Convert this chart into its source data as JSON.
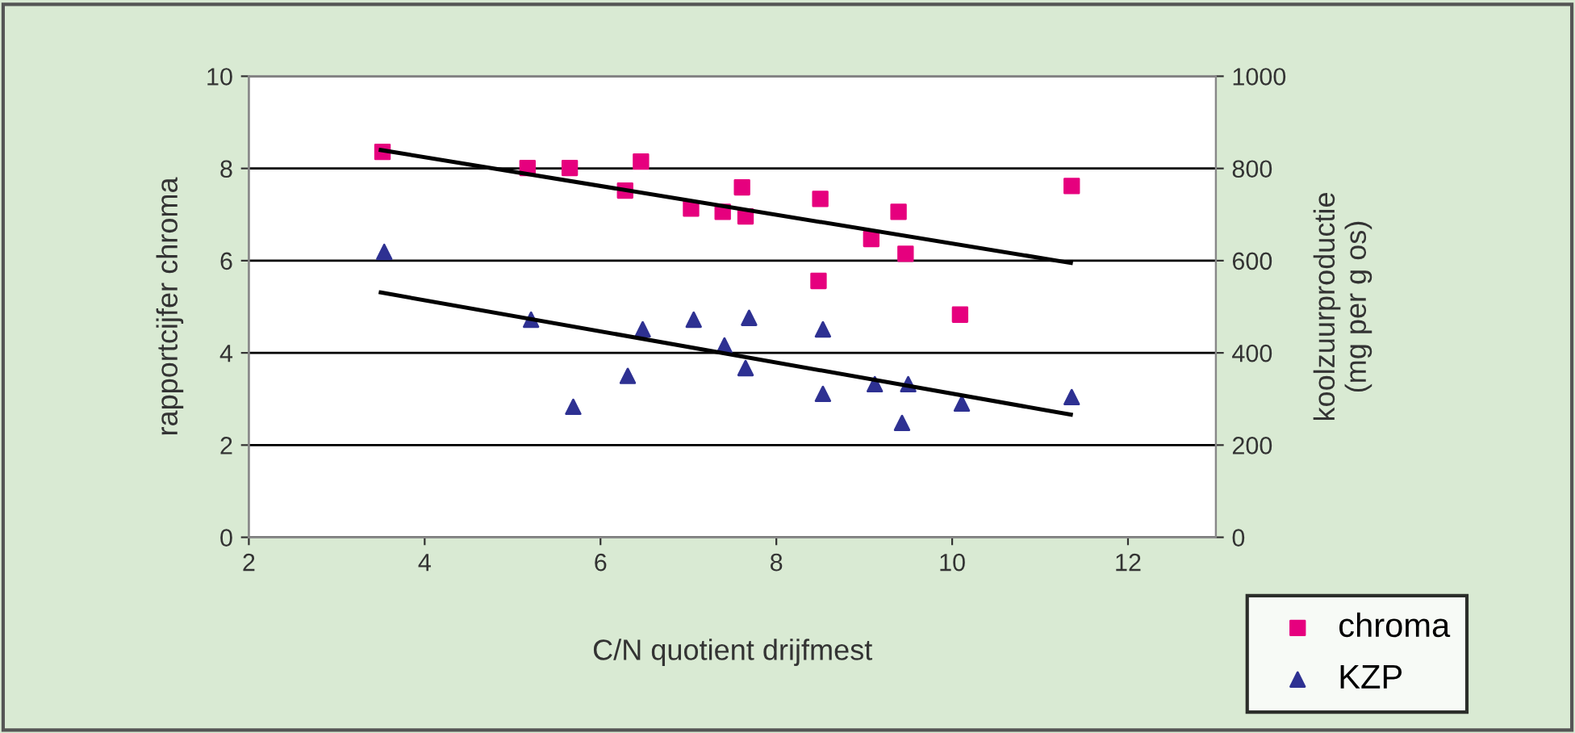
{
  "chart_data": {
    "type": "scatter",
    "xlabel": "C/N quotient drijfmest",
    "ylabel": "rapportcijfer chroma",
    "y2label": "koolzuurproductie\n(mg per g os)",
    "xlim": [
      2,
      13
    ],
    "xticks": [
      2,
      4,
      6,
      8,
      10,
      12
    ],
    "ylim": [
      0,
      10
    ],
    "yticks": [
      0,
      2,
      4,
      6,
      8,
      10
    ],
    "y2lim": [
      0,
      1000
    ],
    "y2ticks": [
      0,
      200,
      400,
      600,
      800,
      1000
    ],
    "grid": "y",
    "legend": "bottom right",
    "series": [
      {
        "name": "chroma",
        "color": "#e6007e",
        "marker": "square",
        "x": [
          3.52,
          5.17,
          5.65,
          6.28,
          6.46,
          7.03,
          7.39,
          7.61,
          7.65,
          8.5,
          8.48,
          9.08,
          9.39,
          9.47,
          10.09,
          11.36
        ],
        "values": [
          8.36,
          8.01,
          8.01,
          7.52,
          8.15,
          7.13,
          7.06,
          7.59,
          6.96,
          7.34,
          5.56,
          6.47,
          7.06,
          6.15,
          4.83,
          7.62
        ]
      },
      {
        "name": "KZP",
        "color": "#2e3192",
        "marker": "triangle",
        "axis": "y2",
        "x": [
          3.54,
          5.21,
          5.69,
          6.31,
          6.48,
          7.06,
          7.41,
          7.65,
          7.69,
          8.53,
          8.53,
          9.12,
          9.43,
          9.5,
          10.11,
          11.36
        ],
        "values": [
          619,
          472,
          283,
          350,
          451,
          472,
          416,
          367,
          476,
          451,
          311,
          332,
          248,
          332,
          290,
          304
        ]
      },
      {
        "type": "line",
        "color": "#000000",
        "x": [
          3.5,
          11.35
        ],
        "values": [
          8.4,
          5.95
        ]
      },
      {
        "type": "line",
        "color": "#000000",
        "axis": "y2",
        "x": [
          3.5,
          11.35
        ],
        "values": [
          531,
          266
        ]
      }
    ]
  }
}
